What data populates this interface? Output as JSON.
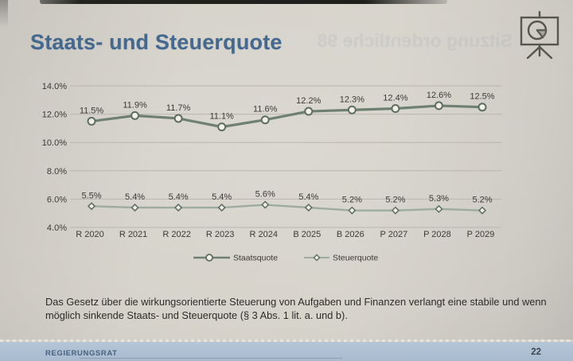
{
  "page": {
    "title": "Staats- und Steuerquote",
    "ghost_text": "Sitzung ordentliche 98",
    "note": "Das Gesetz über die wirkungsorientierte Steuerung von Aufgaben und Finanzen verlangt eine stabile und wenn möglich sinkende Staats- und Steuerquote (§ 3 Abs. 1 lit. a. und b).",
    "footer": {
      "label": "REGIERUNGSRAT",
      "page_number": "22"
    }
  },
  "colors": {
    "title_blue": "#45688f",
    "staatsquote_line": "#6e8070",
    "steuerquote_line": "#9dac9e",
    "marker_stroke": "#5d6e5e",
    "marker_fill": "#f2efe8",
    "grid": "#b9b6ae",
    "chart_text": "#3b3a34",
    "footer_bg": "#aec0d4"
  },
  "chart_data": {
    "type": "line",
    "title": "Staats- und Steuerquote",
    "categories": [
      "R 2020",
      "R 2021",
      "R 2022",
      "R 2023",
      "R 2024",
      "B 2025",
      "B 2026",
      "P 2027",
      "P 2028",
      "P 2029"
    ],
    "series": [
      {
        "name": "Staatsquote",
        "marker": "circle",
        "values": [
          11.5,
          11.9,
          11.7,
          11.1,
          11.6,
          12.2,
          12.3,
          12.4,
          12.6,
          12.5
        ],
        "labels": [
          "11.5%",
          "11.9%",
          "11.7%",
          "11.1%",
          "11.6%",
          "12.2%",
          "12.3%",
          "12.4%",
          "12.6%",
          "12.5%"
        ]
      },
      {
        "name": "Steuerquote",
        "marker": "diamond",
        "values": [
          5.5,
          5.4,
          5.4,
          5.4,
          5.6,
          5.4,
          5.2,
          5.2,
          5.3,
          5.2
        ],
        "labels": [
          "5.5%",
          "5.4%",
          "5.4%",
          "5.4%",
          "5.6%",
          "5.4%",
          "5.2%",
          "5.2%",
          "5.3%",
          "5.2%"
        ]
      }
    ],
    "xlabel": "",
    "ylabel": "",
    "ylim": [
      4,
      14
    ],
    "yticks": [
      {
        "value": 4,
        "label": "4.0%"
      },
      {
        "value": 6,
        "label": "6.0%"
      },
      {
        "value": 8,
        "label": "8.0%"
      },
      {
        "value": 10,
        "label": "10.0%"
      },
      {
        "value": 12,
        "label": "12.0%"
      },
      {
        "value": 14,
        "label": "14.0%"
      }
    ],
    "grid": true,
    "legend_position": "bottom"
  }
}
